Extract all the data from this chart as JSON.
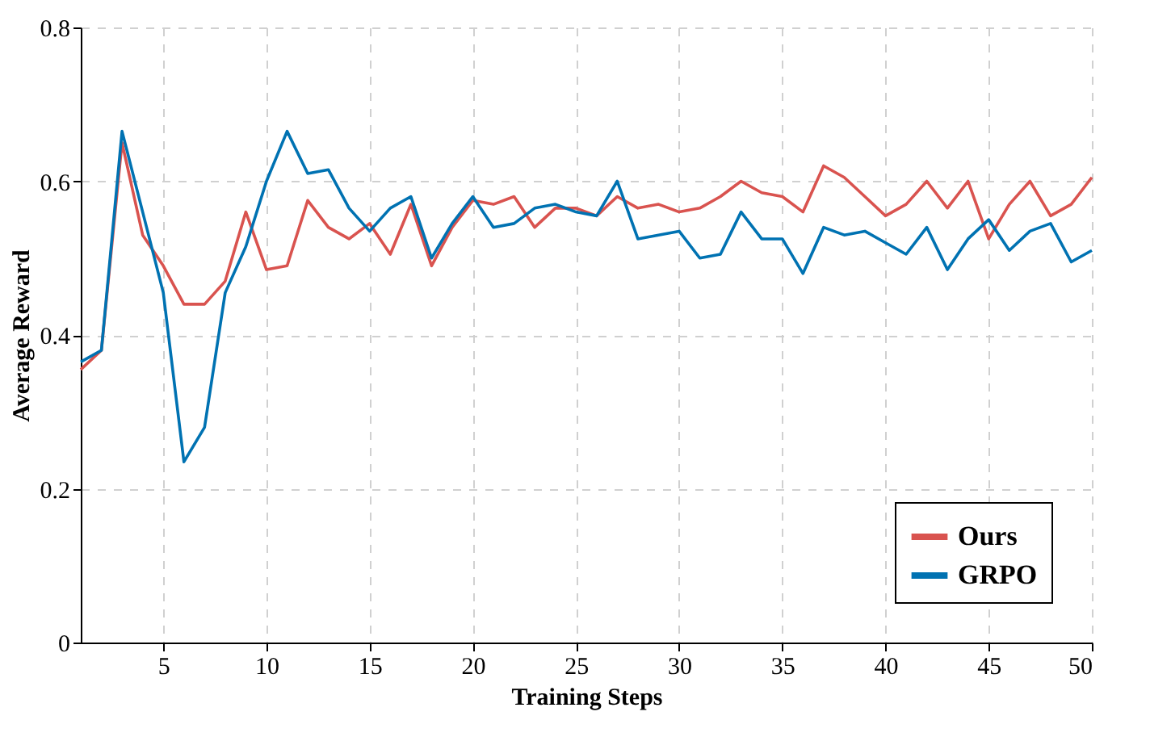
{
  "chart_data": {
    "type": "line",
    "xlabel": "Training Steps",
    "ylabel": "Average Reward",
    "x": [
      1,
      2,
      3,
      4,
      5,
      6,
      7,
      8,
      9,
      10,
      11,
      12,
      13,
      14,
      15,
      16,
      17,
      18,
      19,
      20,
      21,
      22,
      23,
      24,
      25,
      26,
      27,
      28,
      29,
      30,
      31,
      32,
      33,
      34,
      35,
      36,
      37,
      38,
      39,
      40,
      41,
      42,
      43,
      44,
      45,
      46,
      47,
      48,
      49,
      50
    ],
    "series": [
      {
        "name": "Ours",
        "color": "#d9534f",
        "values": [
          0.355,
          0.38,
          0.65,
          0.53,
          0.49,
          0.44,
          0.44,
          0.47,
          0.56,
          0.485,
          0.49,
          0.575,
          0.54,
          0.525,
          0.545,
          0.505,
          0.57,
          0.49,
          0.54,
          0.575,
          0.57,
          0.58,
          0.54,
          0.565,
          0.565,
          0.555,
          0.58,
          0.565,
          0.57,
          0.56,
          0.565,
          0.58,
          0.6,
          0.585,
          0.58,
          0.56,
          0.62,
          0.605,
          0.58,
          0.555,
          0.57,
          0.6,
          0.565,
          0.6,
          0.525,
          0.57,
          0.6,
          0.555,
          0.57,
          0.605
        ]
      },
      {
        "name": "GRPO",
        "color": "#0072b2",
        "values": [
          0.365,
          0.38,
          0.665,
          0.56,
          0.455,
          0.235,
          0.28,
          0.455,
          0.515,
          0.6,
          0.665,
          0.61,
          0.615,
          0.565,
          0.535,
          0.565,
          0.58,
          0.5,
          0.545,
          0.58,
          0.54,
          0.545,
          0.565,
          0.57,
          0.56,
          0.555,
          0.6,
          0.525,
          0.53,
          0.535,
          0.5,
          0.505,
          0.56,
          0.525,
          0.525,
          0.48,
          0.54,
          0.53,
          0.535,
          0.52,
          0.505,
          0.54,
          0.485,
          0.525,
          0.55,
          0.51,
          0.535,
          0.545,
          0.495,
          0.51
        ]
      }
    ],
    "xlim": [
      1,
      50
    ],
    "xticks": [
      5,
      10,
      15,
      20,
      25,
      30,
      35,
      40,
      45,
      50
    ],
    "ylim": [
      0,
      0.8
    ],
    "yticks": [
      0,
      0.2,
      0.4,
      0.6,
      0.8
    ],
    "grid": true,
    "legend": "bottom right",
    "line_style": "solid",
    "marker": "none"
  }
}
